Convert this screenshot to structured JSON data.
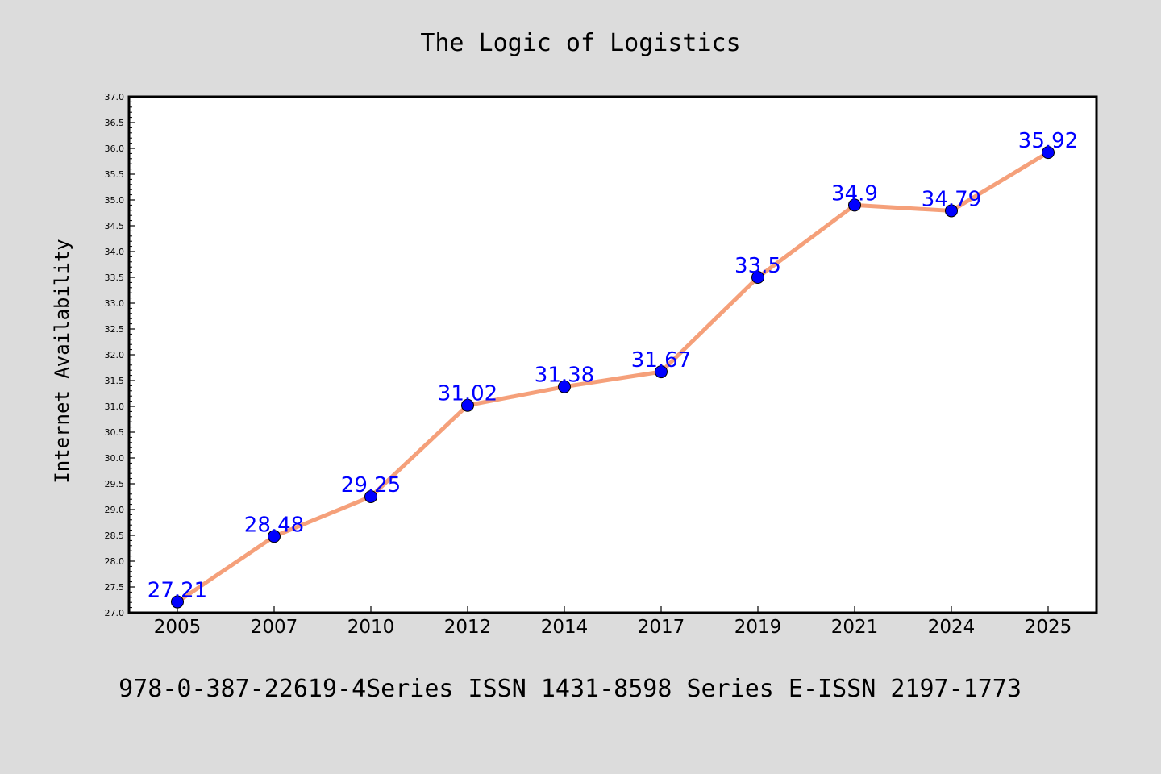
{
  "chart_data": {
    "type": "line",
    "title": "The Logic of Logistics",
    "xlabel": "",
    "ylabel": "Internet Availability",
    "categories": [
      "2005",
      "2007",
      "2010",
      "2012",
      "2014",
      "2017",
      "2019",
      "2021",
      "2024",
      "2025"
    ],
    "series": [
      {
        "values": [
          27.21,
          28.48,
          29.25,
          31.02,
          31.38,
          31.67,
          33.5,
          34.9,
          34.79,
          35.92
        ],
        "line_color": "#f5a07a",
        "marker_color": "#0000ff",
        "label_color": "#0000ff"
      }
    ],
    "ylim": [
      27.0,
      37.0
    ],
    "ytick_step": 0.5,
    "grid": false,
    "legend": "none"
  },
  "footer": {
    "text": "978-0-387-22619-4Series ISSN 1431-8598 Series E-ISSN 2197-1773"
  },
  "colors": {
    "background": "#dcdcdc",
    "plot_background": "#ffffff",
    "axis": "#000000"
  }
}
